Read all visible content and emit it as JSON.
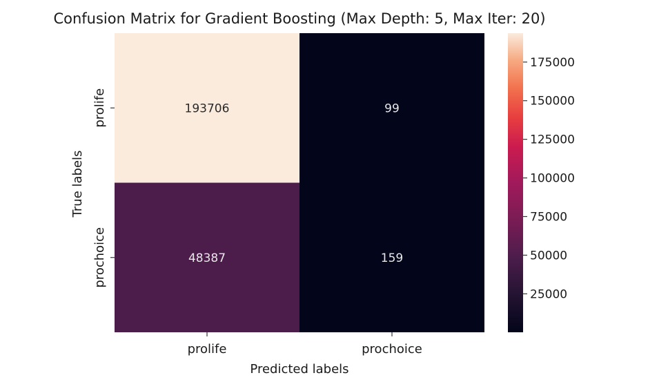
{
  "chart_data": {
    "type": "heatmap",
    "title": "Confusion Matrix for Gradient Boosting (Max Depth: 5, Max Iter: 20)",
    "xlabel": "Predicted labels",
    "ylabel": "True labels",
    "x_categories": [
      "prolife",
      "prochoice"
    ],
    "y_categories": [
      "prolife",
      "prochoice"
    ],
    "values": [
      [
        193706,
        99
      ],
      [
        48387,
        159
      ]
    ],
    "colorbar": {
      "ticks": [
        25000,
        50000,
        75000,
        100000,
        125000,
        150000,
        175000
      ],
      "tick_labels": [
        "25000",
        "50000",
        "75000",
        "100000",
        "125000",
        "150000",
        "175000"
      ],
      "min": 99,
      "max": 193706
    },
    "colormap": "rocket",
    "colors": {
      "low": "#0b0a1f",
      "high": "#f9e9dd",
      "text_on_dark": "#e8e8e8",
      "text_on_light": "#2a2a2a"
    },
    "grid": false
  }
}
